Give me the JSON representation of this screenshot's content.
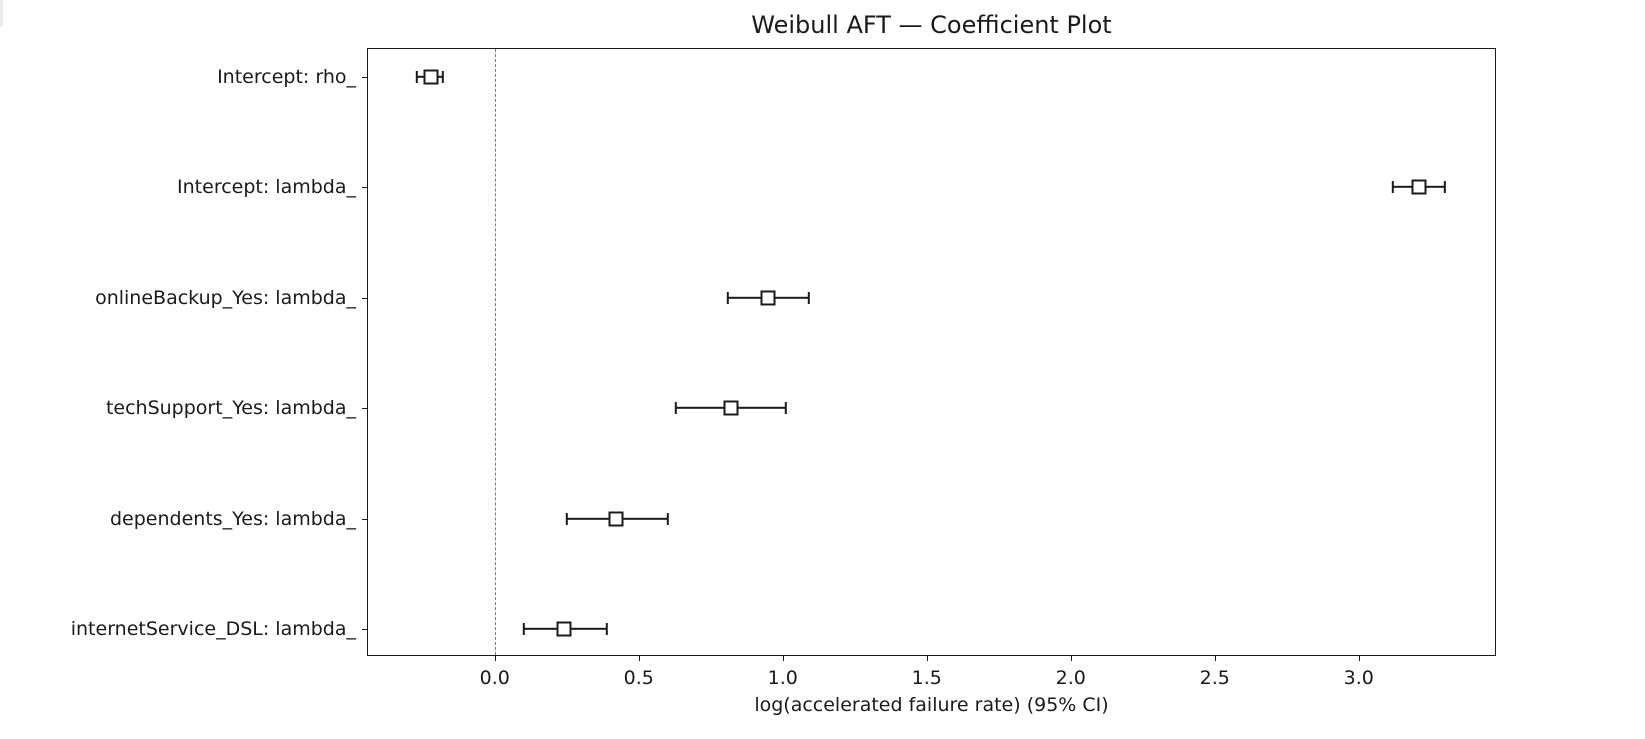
{
  "chart_data": {
    "type": "scatter",
    "subtype": "forest_plot_with_error_bars",
    "title": "Weibull AFT — Coefficient Plot",
    "xlabel": "log(accelerated failure rate) (95% CI)",
    "ylabel": "",
    "xlim": [
      -0.44,
      3.48
    ],
    "xticks": [
      0.0,
      0.5,
      1.0,
      1.5,
      2.0,
      2.5,
      3.0
    ],
    "xtick_labels": [
      "0.0",
      "0.5",
      "1.0",
      "1.5",
      "2.0",
      "2.5",
      "3.0"
    ],
    "reference_line": {
      "x": 0.0,
      "style": "dashed",
      "color": "#7a7a7a"
    },
    "grid": false,
    "legend": null,
    "marker": "open-square",
    "categories": [
      "Intercept: rho_",
      "Intercept: lambda_",
      "onlineBackup_Yes: lambda_",
      "techSupport_Yes: lambda_",
      "dependents_Yes: lambda_",
      "internetService_DSL: lambda_"
    ],
    "series": [
      {
        "name": "coef",
        "values": [
          -0.22,
          3.21,
          0.95,
          0.82,
          0.42,
          0.24
        ],
        "lower_95": [
          -0.27,
          3.12,
          0.81,
          0.63,
          0.25,
          0.1
        ],
        "upper_95": [
          -0.18,
          3.3,
          1.09,
          1.01,
          0.6,
          0.39
        ]
      }
    ]
  }
}
